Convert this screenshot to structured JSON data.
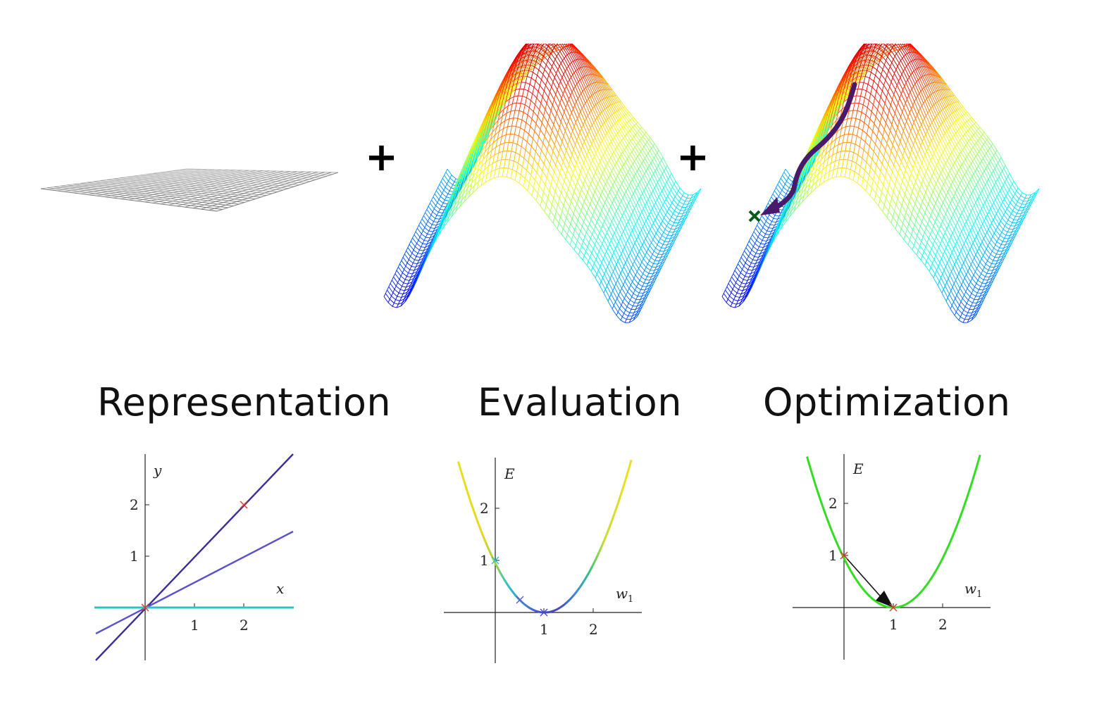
{
  "operators": {
    "plus_1": "+",
    "plus_2": "+"
  },
  "sections": [
    {
      "title": "Representation",
      "surface_icon": "flat-plane-grid-icon",
      "plot": {
        "tick_labels_x": [
          "1",
          "2"
        ],
        "tick_labels_y": [
          "1",
          "2"
        ],
        "x_axis_label": "x",
        "y_axis_label": "y"
      }
    },
    {
      "title": "Evaluation",
      "surface_icon": "saddle-surface-icon",
      "plot": {
        "tick_labels_x": [
          "1",
          "2"
        ],
        "tick_labels_y": [
          "1",
          "2"
        ],
        "x_axis_label": "w",
        "x_axis_label_sub": "1",
        "y_axis_label": "E"
      }
    },
    {
      "title": "Optimization",
      "surface_icon": "saddle-surface-with-descent-path-icon",
      "plot": {
        "tick_labels_x": [
          "1",
          "2"
        ],
        "tick_labels_y": [
          "1",
          "2"
        ],
        "x_axis_label": "w",
        "x_axis_label_sub": "1",
        "y_axis_label": "E"
      }
    }
  ],
  "colors": {
    "line_dark": "#3a2f9a",
    "line_mid": "#5a50d0",
    "line_cyan": "#2cc3c8",
    "curve_green": "#33dd22",
    "marker_red": "#e23a2a",
    "path_purple": "#4a1a6a",
    "marker_green": "#0a5a1a"
  }
}
